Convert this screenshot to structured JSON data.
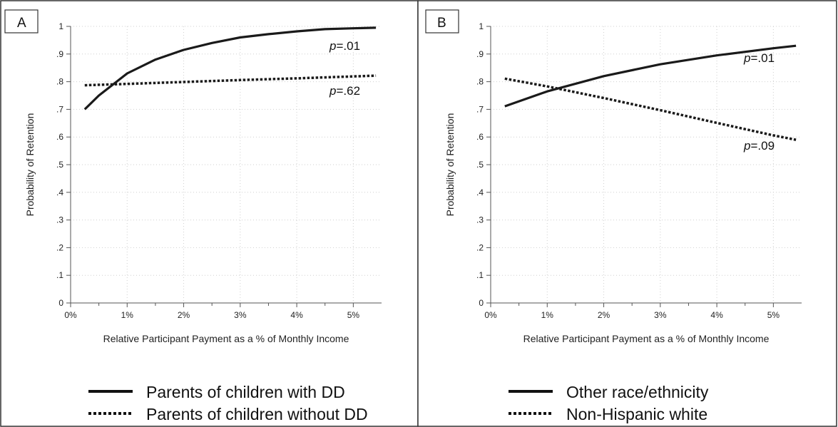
{
  "panels": [
    {
      "panel_label": "A",
      "legend": [
        "Parents of children with DD",
        "Parents of children without DD"
      ],
      "annotations": [
        {
          "prefix": "p",
          "text": "=.01"
        },
        {
          "prefix": "p",
          "text": "=.62"
        }
      ]
    },
    {
      "panel_label": "B",
      "legend": [
        "Other race/ethnicity",
        "Non-Hispanic white"
      ],
      "annotations": [
        {
          "prefix": "p",
          "text": "=.01"
        },
        {
          "prefix": "p",
          "text": "=.09"
        }
      ]
    }
  ],
  "chart_data": [
    {
      "type": "line",
      "xlabel": "Relative Participant Payment as a % of Monthly Income",
      "ylabel": "Probability of Retention",
      "xlim": [
        0,
        5.5
      ],
      "ylim": [
        0,
        1
      ],
      "xticks": [
        0,
        1,
        2,
        3,
        4,
        5
      ],
      "xtick_labels": [
        "0%",
        "1%",
        "2%",
        "3%",
        "4%",
        "5%"
      ],
      "yticks": [
        0,
        0.1,
        0.2,
        0.3,
        0.4,
        0.5,
        0.6,
        0.7,
        0.8,
        0.9,
        1
      ],
      "ytick_labels": [
        "0",
        ".1",
        ".2",
        ".3",
        ".4",
        ".5",
        ".6",
        ".7",
        ".8",
        ".9",
        "1"
      ],
      "grid": true,
      "legend_position": "bottom",
      "series": [
        {
          "name": "Parents of children with DD",
          "style": "solid",
          "x": [
            0.25,
            0.5,
            0.75,
            1.0,
            1.5,
            2.0,
            2.5,
            3.0,
            3.5,
            4.0,
            4.5,
            5.0,
            5.4
          ],
          "y": [
            0.7,
            0.75,
            0.79,
            0.83,
            0.88,
            0.915,
            0.94,
            0.96,
            0.972,
            0.982,
            0.99,
            0.993,
            0.995
          ]
        },
        {
          "name": "Parents of children without DD",
          "style": "dotted",
          "x": [
            0.25,
            1.0,
            2.0,
            3.0,
            4.0,
            5.0,
            5.4
          ],
          "y": [
            0.787,
            0.792,
            0.799,
            0.806,
            0.812,
            0.819,
            0.822
          ]
        }
      ]
    },
    {
      "type": "line",
      "xlabel": "Relative Participant Payment as a % of Monthly Income",
      "ylabel": "Probability of Retention",
      "xlim": [
        0,
        5.5
      ],
      "ylim": [
        0,
        1
      ],
      "xticks": [
        0,
        1,
        2,
        3,
        4,
        5
      ],
      "xtick_labels": [
        "0%",
        "1%",
        "2%",
        "3%",
        "4%",
        "5%"
      ],
      "yticks": [
        0,
        0.1,
        0.2,
        0.3,
        0.4,
        0.5,
        0.6,
        0.7,
        0.8,
        0.9,
        1
      ],
      "ytick_labels": [
        "0",
        ".1",
        ".2",
        ".3",
        ".4",
        ".5",
        ".6",
        ".7",
        ".8",
        ".9",
        "1"
      ],
      "grid": true,
      "legend_position": "bottom",
      "series": [
        {
          "name": "Other race/ethnicity",
          "style": "solid",
          "x": [
            0.25,
            1.0,
            2.0,
            3.0,
            4.0,
            5.0,
            5.4
          ],
          "y": [
            0.711,
            0.765,
            0.82,
            0.863,
            0.895,
            0.921,
            0.93
          ]
        },
        {
          "name": "Non-Hispanic white",
          "style": "dotted",
          "x": [
            0.25,
            1.0,
            2.0,
            3.0,
            4.0,
            5.0,
            5.4
          ],
          "y": [
            0.811,
            0.783,
            0.741,
            0.697,
            0.651,
            0.606,
            0.59
          ]
        }
      ]
    }
  ]
}
